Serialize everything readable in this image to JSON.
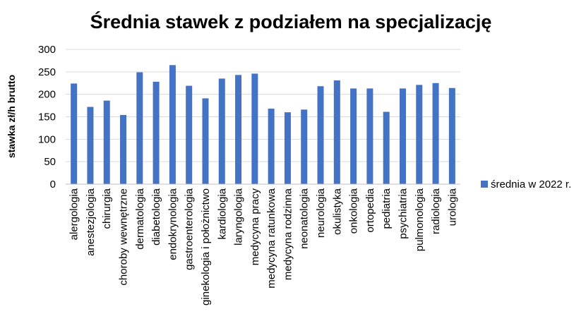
{
  "chart_data": {
    "type": "bar",
    "title": "Średnia stawek z podziałem na specjalizację",
    "xlabel": "",
    "ylabel": "stawka zł/h brutto",
    "ylim": [
      0,
      300
    ],
    "yticks": [
      0,
      50,
      100,
      150,
      200,
      250,
      300
    ],
    "grid": true,
    "legend_position": "right",
    "categories": [
      "alergologia",
      "anestezjologia",
      "chirurgia",
      "choroby wewnętrzne",
      "dermatologia",
      "diabetologia",
      "endokrynologia",
      "gastroenterologia",
      "ginekologia i położnictwo",
      "kardiologia",
      "laryngologia",
      "medycyna pracy",
      "medycyna ratunkowa",
      "medycyna rodzinna",
      "neonatologia",
      "neurologia",
      "okulistyka",
      "onkologia",
      "ortopedia",
      "pediatria",
      "psychiatria",
      "pulmonologia",
      "radiologia",
      "urologia"
    ],
    "series": [
      {
        "name": "średnia w 2022 r.",
        "color": "#4472C4",
        "values": [
          224,
          172,
          186,
          154,
          249,
          228,
          265,
          219,
          191,
          235,
          243,
          246,
          168,
          160,
          166,
          218,
          231,
          213,
          213,
          161,
          213,
          221,
          225,
          214
        ]
      }
    ]
  }
}
